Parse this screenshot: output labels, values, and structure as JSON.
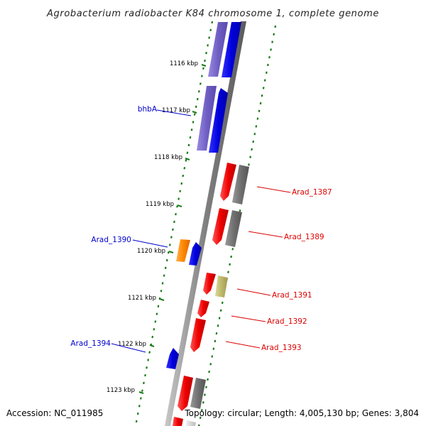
{
  "title": "Agrobacterium radiobacter K84 chromosome 1, complete genome",
  "footer": {
    "accession": "Accession: NC_011985",
    "summary": "Topology: circular; Length: 4,005,130 bp; Genes: 3,804"
  },
  "colors": {
    "backbone": "#8a8a8a",
    "tick": "#1a7a1a",
    "forward_label": "#0000cc",
    "reverse_label": "#dd0000",
    "blue": "#0000ee",
    "purple": "#7766cc",
    "red": "#ee0000",
    "grey": "#707070",
    "orange": "#ff8800",
    "khaki": "#bdb76b"
  },
  "ticks": [
    "1116 kbp",
    "1117 kbp",
    "1118 kbp",
    "1119 kbp",
    "1120 kbp",
    "1121 kbp",
    "1122 kbp",
    "1123 kbp"
  ],
  "gene_labels": {
    "left": [
      "bhbA",
      "Arad_1390",
      "Arad_1394"
    ],
    "right": [
      "Arad_1387",
      "Arad_1389",
      "Arad_1391",
      "Arad_1392",
      "Arad_1393"
    ]
  }
}
